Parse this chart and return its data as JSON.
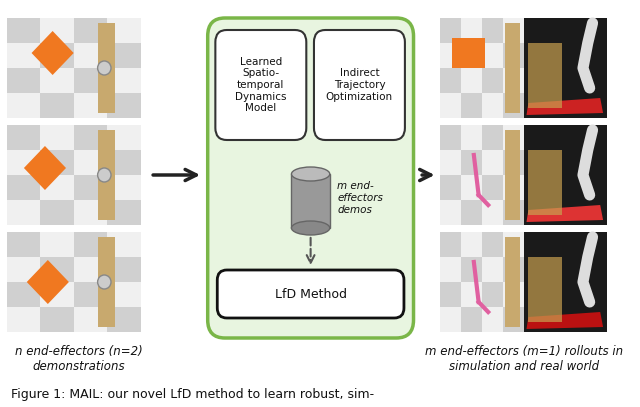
{
  "title": "",
  "bg_color": "#ffffff",
  "green_box_color": "#7ab648",
  "green_box_fill": "#e8f5e0",
  "inner_box_color": "#333333",
  "inner_box_fill": "#ffffff",
  "lfd_box_color": "#111111",
  "lfd_box_fill": "#ffffff",
  "arrow_color": "#222222",
  "dashed_color": "#555555",
  "cylinder_color": "#888888",
  "caption_left": "n end-effectors (n=2)\ndemonstrations",
  "caption_right": "m end-effectors (m=1) rollouts in\nsimulation and real world",
  "label_dynamics": "Learned\nSpatio-\ntemporal\nDynamics\nModel",
  "label_traj": "Indirect\nTrajectory\nOptimization",
  "label_demos": "m end-\neffectors\ndemos",
  "label_lfd": "LfD Method",
  "fig_caption": "Figure 1: MAIL: our novel LfD method to learn robust, sim-"
}
